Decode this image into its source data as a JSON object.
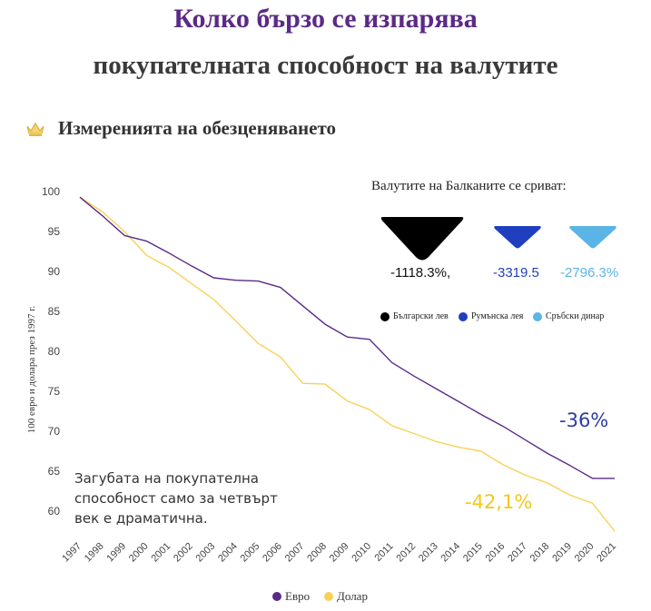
{
  "header": {
    "title_line1": "Колко бързо се изпарява",
    "title_line2": "покупателната способност на валутите",
    "subtitle": "Измеренията на обезценяването",
    "crown_icon": "crown-icon"
  },
  "balkans": {
    "heading": "Валутите на Балканите се сриват:",
    "currencies": [
      {
        "name": "Български лев",
        "change_label": "-1118.3%,",
        "color": "#000000"
      },
      {
        "name": "Румънска лея",
        "change_label": "-3319.5",
        "color": "#1f3fbf"
      },
      {
        "name": "Сръбски динар",
        "change_label": "-2796.3%",
        "color": "#5ab4e5"
      }
    ]
  },
  "note": "Загубата на покупателна способност само за четвърт век е драматична.",
  "annotations": {
    "euro_change": "-36%",
    "dollar_change": "-42,1%",
    "euro_color": "#2c3ea0",
    "dollar_color": "#f2c81a"
  },
  "chart_data": {
    "type": "line",
    "title": "Измеренията на обезценяването",
    "ylabel": "100 евро и долара през 1997 г.",
    "xlabel": "",
    "x": [
      "1997",
      "1998",
      "1999",
      "2000",
      "2001",
      "2002",
      "2003",
      "2004",
      "2005",
      "2006",
      "2007",
      "2008",
      "2009",
      "2010",
      "2011",
      "2012",
      "2013",
      "2014",
      "2015",
      "2016",
      "2017",
      "2018",
      "2019",
      "2020",
      "2021"
    ],
    "ylim": [
      58,
      100
    ],
    "yticks": [
      60,
      65,
      70,
      75,
      80,
      85,
      90,
      95,
      100
    ],
    "series": [
      {
        "name": "Евро",
        "color": "#5b2a86",
        "values": [
          99.3,
          97.0,
          94.5,
          93.8,
          92.3,
          90.7,
          89.2,
          88.9,
          88.8,
          88.0,
          85.7,
          83.4,
          81.8,
          81.5,
          78.6,
          76.9,
          75.3,
          73.7,
          72.1,
          70.6,
          68.9,
          67.2,
          65.7,
          64.1,
          64.1
        ]
      },
      {
        "name": "Долар",
        "color": "#f7d257",
        "values": [
          99.3,
          97.5,
          95.0,
          92.0,
          90.5,
          88.5,
          86.5,
          83.8,
          81.0,
          79.3,
          76.0,
          75.9,
          73.8,
          72.7,
          70.7,
          69.7,
          68.7,
          68.0,
          67.5,
          65.8,
          64.5,
          63.5,
          62.0,
          61.0,
          57.5
        ]
      }
    ],
    "legend_position": "bottom-center",
    "grid": false
  }
}
